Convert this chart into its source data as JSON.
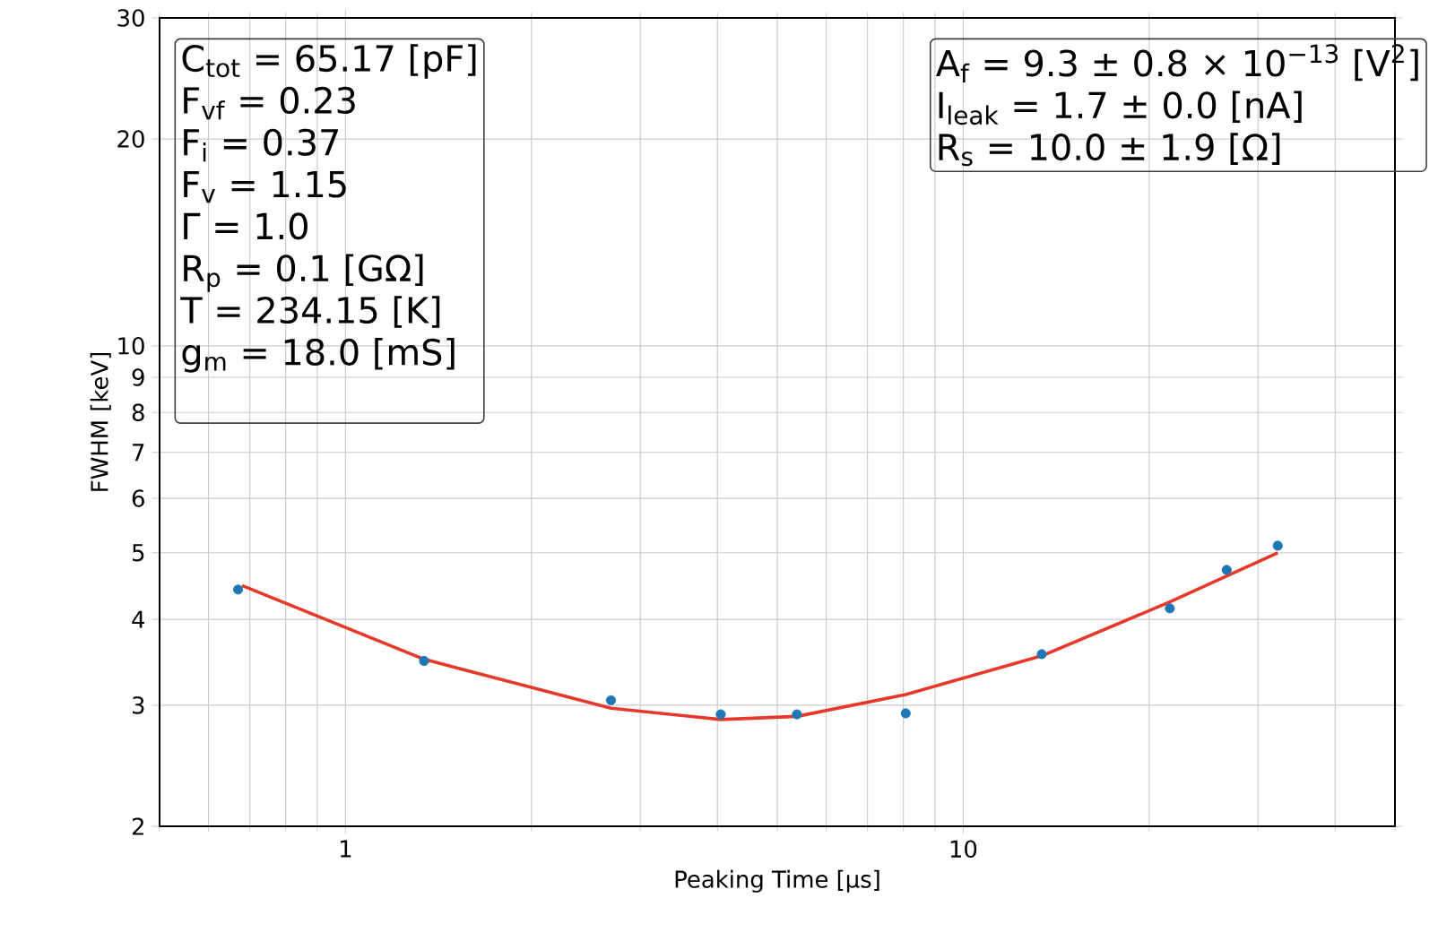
{
  "chart_data": {
    "type": "scatter",
    "xlabel": "Peaking Time [μs]",
    "ylabel": "FWHM [keV]",
    "log": "xy",
    "grid": true,
    "xlim": [
      0.5,
      50
    ],
    "ylim": [
      2,
      30
    ],
    "xticks": [
      1,
      10
    ],
    "yticks": [
      2,
      3,
      4,
      5,
      6,
      7,
      8,
      9,
      10,
      20,
      30
    ],
    "series": [
      {
        "marker": "circle",
        "color": "#1f77b4",
        "x": [
          0.67,
          1.34,
          2.69,
          4.05,
          5.38,
          8.07,
          13.4,
          21.6,
          26.7,
          32.3
        ],
        "values": [
          4.42,
          3.48,
          3.05,
          2.91,
          2.91,
          2.92,
          3.56,
          4.15,
          4.72,
          5.12
        ]
      },
      {
        "type": "line",
        "marker": "none",
        "color": "#e6392b",
        "line_style": "solid",
        "x": [
          0.68,
          1.34,
          2.69,
          4.05,
          5.38,
          8.07,
          13.4,
          21.6,
          32.3
        ],
        "values": [
          4.48,
          3.5,
          2.97,
          2.86,
          2.89,
          3.11,
          3.54,
          4.24,
          5.0
        ]
      }
    ],
    "annotations": [
      "C$_{tot}$ = 65.17 [pF]",
      "F$_{vf}$ = 0.23",
      "F$_{i}$ = 0.37",
      "F$_{v}$ = 1.15",
      "Γ = 1.0",
      "R$_{p}$ = 0.1 [GΩ]",
      "T = 234.15 [K]",
      "g$_{m}$ = 18.0 [mS]",
      "A$_{f}$ = 9.3 ± 0.8 × 10$^{−13}$ [V$^{2}$]",
      "I$_{leak}$ = 1.7 ± 0.0 [nA]",
      "R$_{s}$ = 10.0 ± 1.9 [Ω]"
    ]
  }
}
